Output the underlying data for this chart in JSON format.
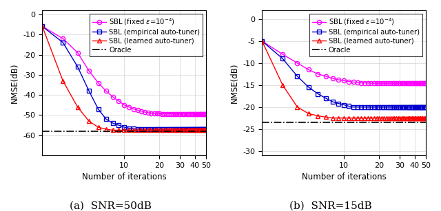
{
  "title_a": "(a)  SNR=50dB",
  "title_b": "(b)  SNR=15dB",
  "xlabel": "Number of iterations",
  "ylabel": "NMSE(dB)",
  "iterations": [
    2,
    3,
    4,
    5,
    6,
    7,
    8,
    9,
    10,
    11,
    12,
    13,
    14,
    15,
    16,
    17,
    18,
    19,
    20,
    21,
    22,
    23,
    24,
    25,
    26,
    27,
    28,
    29,
    30,
    31,
    32,
    33,
    34,
    35,
    36,
    37,
    38,
    39,
    40,
    41,
    42,
    43,
    44,
    45,
    46,
    47,
    48,
    49,
    50
  ],
  "snr50_fixed": [
    -6,
    -12,
    -19,
    -28,
    -34,
    -38,
    -41,
    -43,
    -45,
    -46,
    -47,
    -47.5,
    -48,
    -48.5,
    -48.8,
    -49,
    -49,
    -49.2,
    -49.3,
    -49.4,
    -49.4,
    -49.4,
    -49.4,
    -49.4,
    -49.4,
    -49.4,
    -49.4,
    -49.4,
    -49.4,
    -49.4,
    -49.4,
    -49.4,
    -49.4,
    -49.4,
    -49.4,
    -49.4,
    -49.4,
    -49.4,
    -49.4,
    -49.4,
    -49.4,
    -49.4,
    -49.4,
    -49.4,
    -49.4,
    -49.4,
    -49.4,
    -49.4,
    -49.4
  ],
  "snr50_empirical": [
    -6,
    -14,
    -26,
    -38,
    -47,
    -52,
    -54,
    -55,
    -56,
    -56.5,
    -56.8,
    -57,
    -57,
    -57,
    -57,
    -57,
    -57,
    -57,
    -57,
    -57,
    -57,
    -57,
    -57,
    -57,
    -57,
    -57,
    -57,
    -57,
    -57,
    -57,
    -57,
    -57,
    -57,
    -57,
    -57,
    -57,
    -57,
    -57,
    -57,
    -57,
    -57,
    -57,
    -57,
    -57,
    -57,
    -57,
    -57,
    -57,
    -57
  ],
  "snr50_learned": [
    -6,
    -33,
    -46,
    -53,
    -56,
    -57,
    -57.5,
    -57.5,
    -57.5,
    -57.5,
    -57.5,
    -57.5,
    -57.5,
    -57.5,
    -57.5,
    -57.5,
    -57.5,
    -57.5,
    -57.5,
    -57.5,
    -57.5,
    -57.5,
    -57.5,
    -57.5,
    -57.5,
    -57.5,
    -57.5,
    -57.5,
    -57.5,
    -57.5,
    -57.5,
    -57.5,
    -57.5,
    -57.5,
    -57.5,
    -57.5,
    -57.5,
    -57.5,
    -57.5,
    -57.5,
    -57.5,
    -57.5,
    -57.5,
    -57.5,
    -57.5,
    -57.5,
    -57.5,
    -57.5,
    -57.5
  ],
  "snr50_oracle": -58.0,
  "snr15_fixed": [
    -5,
    -8,
    -10,
    -11.5,
    -12.5,
    -13,
    -13.5,
    -13.8,
    -14,
    -14.2,
    -14.3,
    -14.4,
    -14.5,
    -14.5,
    -14.5,
    -14.6,
    -14.6,
    -14.6,
    -14.6,
    -14.6,
    -14.6,
    -14.6,
    -14.6,
    -14.6,
    -14.6,
    -14.6,
    -14.6,
    -14.6,
    -14.6,
    -14.6,
    -14.6,
    -14.6,
    -14.6,
    -14.6,
    -14.6,
    -14.6,
    -14.6,
    -14.6,
    -14.6,
    -14.6,
    -14.6,
    -14.6,
    -14.6,
    -14.6,
    -14.6,
    -14.6,
    -14.6,
    -14.6,
    -14.6
  ],
  "snr15_empirical": [
    -5,
    -9,
    -13,
    -15.5,
    -17,
    -18,
    -18.8,
    -19.2,
    -19.5,
    -19.8,
    -20,
    -20,
    -20,
    -20,
    -20,
    -20,
    -20,
    -20,
    -20,
    -20,
    -20,
    -20,
    -20,
    -20,
    -20,
    -20,
    -20,
    -20,
    -20,
    -20,
    -20,
    -20,
    -20,
    -20,
    -20,
    -20,
    -20,
    -20,
    -20,
    -20,
    -20,
    -20,
    -20,
    -20,
    -20,
    -20,
    -20,
    -20,
    -20
  ],
  "snr15_learned": [
    -5,
    -15,
    -20,
    -21.5,
    -22,
    -22.3,
    -22.5,
    -22.5,
    -22.5,
    -22.5,
    -22.5,
    -22.5,
    -22.5,
    -22.5,
    -22.5,
    -22.5,
    -22.5,
    -22.5,
    -22.5,
    -22.5,
    -22.5,
    -22.5,
    -22.5,
    -22.5,
    -22.5,
    -22.5,
    -22.5,
    -22.5,
    -22.5,
    -22.5,
    -22.5,
    -22.5,
    -22.5,
    -22.5,
    -22.5,
    -22.5,
    -22.5,
    -22.5,
    -22.5,
    -22.5,
    -22.5,
    -22.5,
    -22.5,
    -22.5,
    -22.5,
    -22.5,
    -22.5,
    -22.5,
    -22.5
  ],
  "snr15_oracle": -23.5,
  "color_fixed": "#FF00FF",
  "color_empirical": "#0000CD",
  "color_learned": "#FF0000",
  "color_oracle": "#000000",
  "ylim_a": [
    -70,
    2
  ],
  "yticks_a": [
    0,
    -10,
    -20,
    -30,
    -40,
    -50,
    -60
  ],
  "ylim_b": [
    -31,
    2
  ],
  "yticks_b": [
    0,
    -5,
    -10,
    -15,
    -20,
    -25,
    -30
  ],
  "xlim": [
    2,
    50
  ],
  "xticks": [
    10,
    20,
    30,
    40,
    50
  ],
  "marker_size": 4.5,
  "line_width": 1.0,
  "legend_fontsize": 7.2,
  "axis_fontsize": 8.5,
  "tick_fontsize": 8,
  "caption_fontsize": 11
}
